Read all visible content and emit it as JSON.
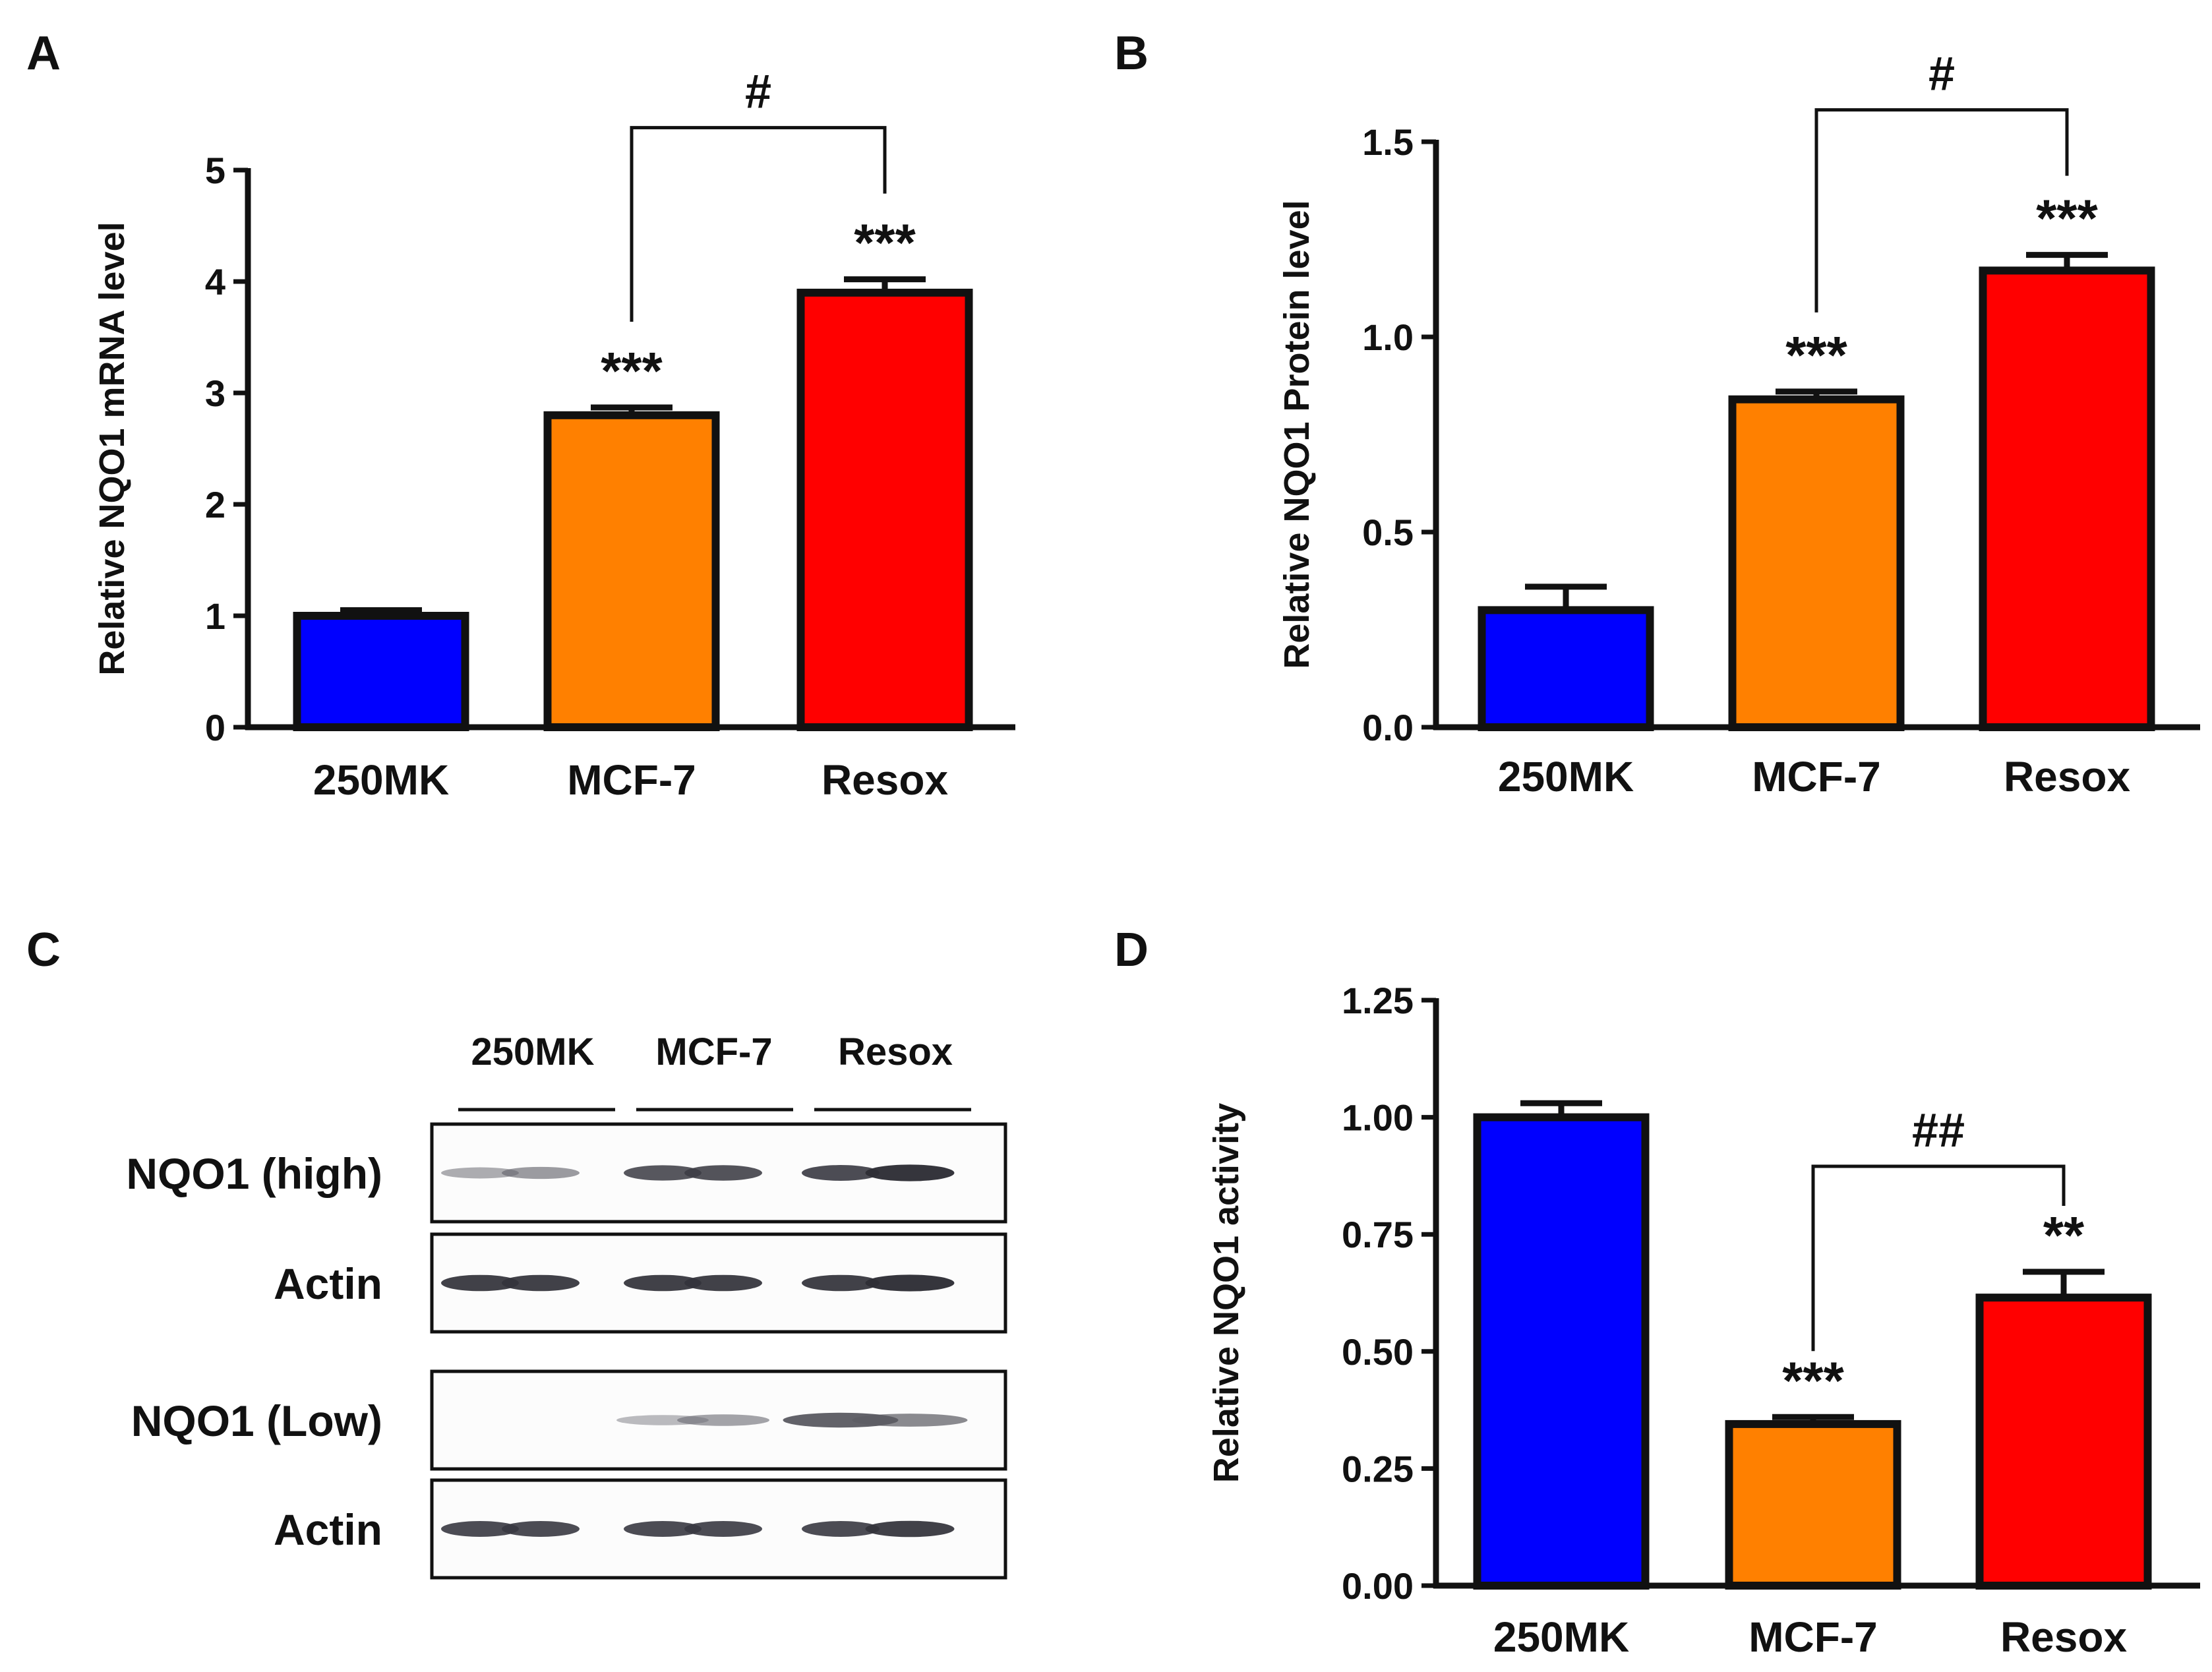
{
  "panels": {
    "A": {
      "letter": "A"
    },
    "B": {
      "letter": "B"
    },
    "C": {
      "letter": "C"
    },
    "D": {
      "letter": "D"
    }
  },
  "colors": {
    "blue": "#0000ff",
    "orange": "#ff8000",
    "red": "#ff0000",
    "ink": "#111111"
  },
  "chart_data": [
    {
      "panel": "A",
      "type": "bar",
      "categories": [
        "250MK",
        "MCF-7",
        "Resox"
      ],
      "values": [
        1.0,
        2.8,
        3.9
      ],
      "errors": [
        0.05,
        0.07,
        0.12
      ],
      "colors": [
        "#0000ff",
        "#ff8000",
        "#ff0000"
      ],
      "ylabel": "Relative NQO1 mRNA level",
      "ylim": [
        0,
        5
      ],
      "yticks": [
        0,
        1,
        2,
        3,
        4,
        5
      ],
      "ytick_labels": [
        "0",
        "1",
        "2",
        "3",
        "4",
        "5"
      ],
      "significance": [
        "",
        "***",
        "***"
      ],
      "comparison": {
        "from": 1,
        "to": 2,
        "label": "#"
      }
    },
    {
      "panel": "B",
      "type": "bar",
      "categories": [
        "250MK",
        "MCF-7",
        "Resox"
      ],
      "values": [
        0.3,
        0.84,
        1.17
      ],
      "errors": [
        0.06,
        0.02,
        0.04
      ],
      "colors": [
        "#0000ff",
        "#ff8000",
        "#ff0000"
      ],
      "ylabel": "Relative NQO1 Protein level",
      "ylim": [
        0,
        1.5
      ],
      "yticks": [
        0,
        0.5,
        1.0,
        1.5
      ],
      "ytick_labels": [
        "0.0",
        "0.5",
        "1.0",
        "1.5"
      ],
      "significance": [
        "",
        "***",
        "***"
      ],
      "comparison": {
        "from": 1,
        "to": 2,
        "label": "#"
      }
    },
    {
      "panel": "D",
      "type": "bar",
      "categories": [
        "250MK",
        "MCF-7",
        "Resox"
      ],
      "values": [
        1.0,
        0.345,
        0.615
      ],
      "errors": [
        0.03,
        0.015,
        0.055
      ],
      "colors": [
        "#0000ff",
        "#ff8000",
        "#ff0000"
      ],
      "ylabel": "Relative NQO1 activity",
      "ylim": [
        0,
        1.25
      ],
      "yticks": [
        0,
        0.25,
        0.5,
        0.75,
        1.0,
        1.25
      ],
      "ytick_labels": [
        "0.00",
        "0.25",
        "0.50",
        "0.75",
        "1.00",
        "1.25"
      ],
      "significance": [
        "",
        "***",
        "**"
      ],
      "comparison": {
        "from": 1,
        "to": 2,
        "label": "##"
      }
    }
  ],
  "blot": {
    "columns": [
      "250MK",
      "MCF-7",
      "Resox"
    ],
    "rows": [
      {
        "label": "NQO1 (high)",
        "intensity": [
          0.35,
          0.45,
          0.8,
          0.82,
          0.85,
          0.95
        ]
      },
      {
        "label": "Actin",
        "intensity": [
          0.9,
          0.9,
          0.9,
          0.9,
          0.9,
          0.95
        ]
      },
      {
        "label": "NQO1 (Low)",
        "intensity": [
          0,
          0,
          0.25,
          0.4,
          0.75,
          0.55
        ]
      },
      {
        "label": "Actin",
        "intensity": [
          0.85,
          0.85,
          0.85,
          0.85,
          0.85,
          0.9
        ]
      }
    ]
  }
}
